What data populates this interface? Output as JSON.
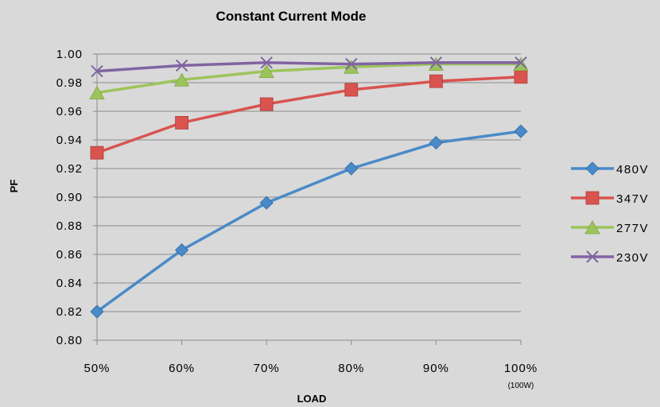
{
  "chart_data": {
    "type": "line",
    "title": "Constant Current Mode",
    "xlabel": "LOAD",
    "ylabel": "PF",
    "categories": [
      "50%",
      "60%",
      "70%",
      "80%",
      "90%",
      "100%"
    ],
    "category_note": "(100W)",
    "ylim": [
      0.8,
      1.0
    ],
    "yticks": [
      "0.80",
      "0.82",
      "0.84",
      "0.86",
      "0.88",
      "0.90",
      "0.92",
      "0.94",
      "0.96",
      "0.98",
      "1.00"
    ],
    "grid": true,
    "legend_position": "right",
    "series": [
      {
        "name": "480V",
        "color": "#4a8ac8",
        "marker": "diamond",
        "values": [
          0.82,
          0.863,
          0.896,
          0.92,
          0.938,
          0.946
        ]
      },
      {
        "name": "347V",
        "color": "#d9534f",
        "marker": "square",
        "values": [
          0.931,
          0.952,
          0.965,
          0.975,
          0.981,
          0.984
        ]
      },
      {
        "name": "277V",
        "color": "#9cc45a",
        "marker": "triangle",
        "values": [
          0.973,
          0.982,
          0.988,
          0.991,
          0.993,
          0.993
        ]
      },
      {
        "name": "230V",
        "color": "#8064a2",
        "marker": "x",
        "values": [
          0.988,
          0.992,
          0.994,
          0.993,
          0.994,
          0.994
        ]
      }
    ]
  }
}
